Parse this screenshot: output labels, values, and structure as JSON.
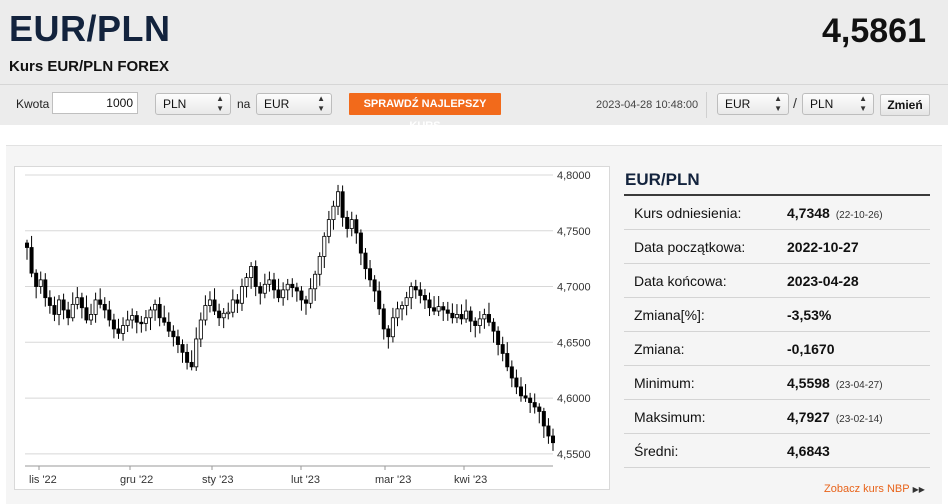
{
  "header": {
    "pair": "EUR/PLN",
    "rate": "4,5861",
    "subtitle": "Kurs EUR/PLN FOREX"
  },
  "converter": {
    "amount_label": "Kwota",
    "amount_value": "1000",
    "from_currency": "PLN",
    "to_label": "na",
    "to_currency": "EUR",
    "best_rate_button": "SPRAWDŹ NAJLEPSZY KURS",
    "timestamp": "2023-04-28 10:48:00"
  },
  "pair_selector": {
    "base": "EUR",
    "separator": "/",
    "quote": "PLN",
    "change_button": "Zmień"
  },
  "stats": {
    "title": "EUR/PLN",
    "rows": [
      {
        "label": "Kurs odniesienia:",
        "value": "4,7348",
        "date": "(22-10-26)"
      },
      {
        "label": "Data początkowa:",
        "value": "2022-10-27",
        "date": ""
      },
      {
        "label": "Data końcowa:",
        "value": "2023-04-28",
        "date": ""
      },
      {
        "label": "Zmiana[%]:",
        "value": "-3,53%",
        "date": ""
      },
      {
        "label": "Zmiana:",
        "value": "-0,1670",
        "date": ""
      },
      {
        "label": "Minimum:",
        "value": "4,5598",
        "date": "(23-04-27)"
      },
      {
        "label": "Maksimum:",
        "value": "4,7927",
        "date": "(23-02-14)"
      },
      {
        "label": "Średni:",
        "value": "4,6843",
        "date": ""
      }
    ],
    "nbp_link": "Zobacz kurs NBP"
  },
  "colors": {
    "accent": "#f26a1b",
    "title": "#13233d",
    "candle": "#000000"
  },
  "chart_data": {
    "type": "candlestick",
    "title": "",
    "xlabel": "",
    "ylabel": "",
    "ylim": [
      4.54,
      4.8
    ],
    "y_ticks": [
      "4,8000",
      "4,7500",
      "4,7000",
      "4,6500",
      "4,6000",
      "4,5500"
    ],
    "y_tick_values": [
      4.8,
      4.75,
      4.7,
      4.65,
      4.6,
      4.55
    ],
    "x_labels": [
      "lis '22",
      "gru '22",
      "sty '23",
      "lut '23",
      "mar '23",
      "kwi '23"
    ],
    "grid": true,
    "close_series": [
      4.735,
      4.712,
      4.7,
      4.706,
      4.69,
      4.683,
      4.675,
      4.688,
      4.679,
      4.672,
      4.684,
      4.69,
      4.681,
      4.67,
      4.675,
      4.688,
      4.684,
      4.679,
      4.67,
      4.662,
      4.658,
      4.665,
      4.67,
      4.674,
      4.668,
      4.667,
      4.672,
      4.679,
      4.684,
      4.672,
      4.668,
      4.66,
      4.655,
      4.648,
      4.641,
      4.632,
      4.628,
      4.653,
      4.67,
      4.683,
      4.688,
      4.678,
      4.672,
      4.676,
      4.677,
      4.688,
      4.685,
      4.7,
      4.708,
      4.718,
      4.7,
      4.694,
      4.702,
      4.706,
      4.697,
      4.69,
      4.697,
      4.702,
      4.699,
      4.696,
      4.688,
      4.685,
      4.698,
      4.711,
      4.727,
      4.745,
      4.76,
      4.772,
      4.785,
      4.762,
      4.752,
      4.76,
      4.748,
      4.73,
      4.716,
      4.706,
      4.696,
      4.68,
      4.662,
      4.655,
      4.672,
      4.68,
      4.683,
      4.69,
      4.7,
      4.697,
      4.692,
      4.688,
      4.681,
      4.678,
      4.682,
      4.679,
      4.676,
      4.672,
      4.675,
      4.671,
      4.678,
      4.669,
      4.665,
      4.671,
      4.675,
      4.668,
      4.66,
      4.648,
      4.64,
      4.628,
      4.618,
      4.61,
      4.602,
      4.6,
      4.596,
      4.592,
      4.588,
      4.575,
      4.566,
      4.56
    ]
  }
}
